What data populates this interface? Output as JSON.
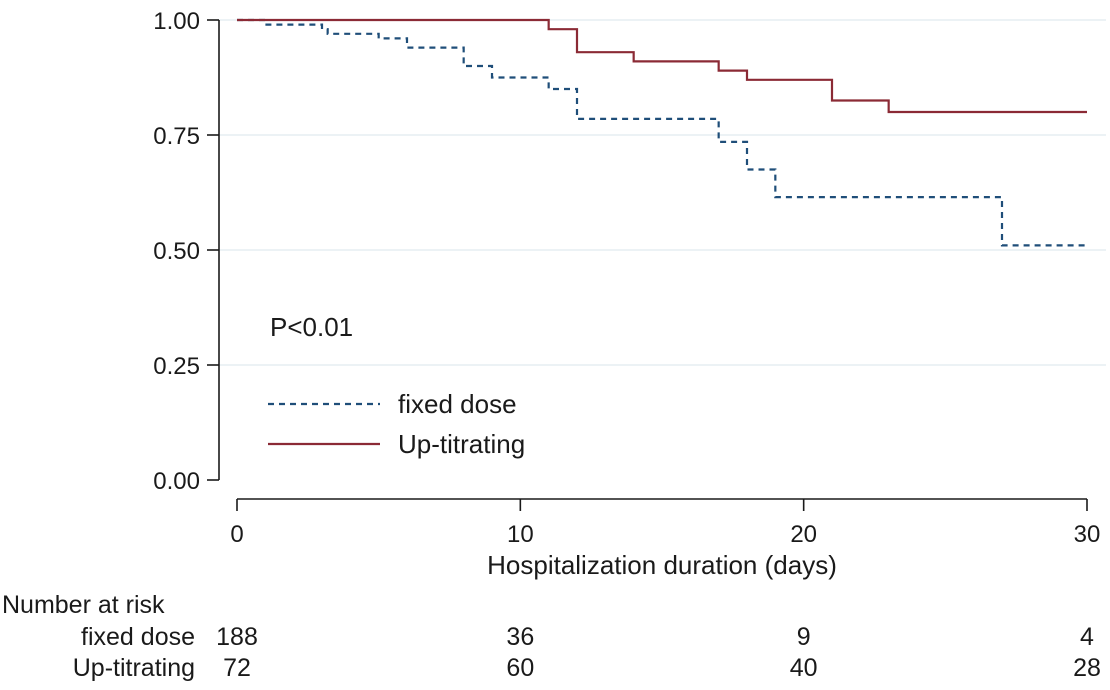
{
  "chart_data": {
    "type": "line",
    "subtype": "kaplan-meier-step",
    "xlabel": "Hospitalization duration (days)",
    "ylabel": "",
    "xlim": [
      0,
      30
    ],
    "ylim": [
      0,
      1
    ],
    "xticks": [
      0,
      10,
      20,
      30
    ],
    "xtick_labels": [
      "0",
      "10",
      "20",
      "30"
    ],
    "yticks": [
      0,
      0.25,
      0.5,
      0.75,
      1
    ],
    "ytick_labels": [
      "0.00",
      "0.25",
      "0.50",
      "0.75",
      "1.00"
    ],
    "grid": "horizontal",
    "annotation": "P<0.01",
    "legend_placement": "lower-left",
    "series": [
      {
        "name": "fixed dose",
        "color": "#1f4e79",
        "style": "dashed",
        "steps": [
          [
            0,
            1.0
          ],
          [
            1,
            0.99
          ],
          [
            3,
            0.98
          ],
          [
            3.2,
            0.97
          ],
          [
            5,
            0.96
          ],
          [
            6,
            0.94
          ],
          [
            8,
            0.9
          ],
          [
            9,
            0.875
          ],
          [
            11,
            0.85
          ],
          [
            12,
            0.785
          ],
          [
            17,
            0.735
          ],
          [
            18,
            0.675
          ],
          [
            19,
            0.615
          ],
          [
            27,
            0.51
          ],
          [
            30,
            0.51
          ]
        ]
      },
      {
        "name": "Up-titrating",
        "color": "#8b2a35",
        "style": "solid",
        "steps": [
          [
            0,
            1.0
          ],
          [
            11,
            0.98
          ],
          [
            12,
            0.93
          ],
          [
            14,
            0.91
          ],
          [
            17,
            0.89
          ],
          [
            18,
            0.87
          ],
          [
            21,
            0.825
          ],
          [
            23,
            0.8
          ],
          [
            30,
            0.8
          ]
        ]
      }
    ],
    "risk_table": {
      "title": "Number at risk",
      "times": [
        0,
        10,
        20,
        30
      ],
      "rows": [
        {
          "label": "fixed dose",
          "values": [
            "188",
            "36",
            "9",
            "4"
          ]
        },
        {
          "label": "Up-titrating",
          "values": [
            "72",
            "60",
            "40",
            "28"
          ]
        }
      ]
    }
  }
}
